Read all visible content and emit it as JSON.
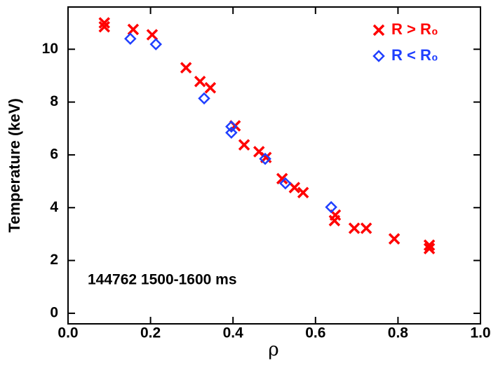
{
  "chart_data": {
    "type": "scatter",
    "xlabel": "ρ",
    "ylabel": "Temperature (keV)",
    "annotation": "144762 1500-1600 ms",
    "xlim": [
      0,
      1
    ],
    "ylim": [
      -0.4,
      11.6
    ],
    "xticks": [
      {
        "value": 0,
        "label": "0.0"
      },
      {
        "value": 0.2,
        "label": "0.2"
      },
      {
        "value": 0.4,
        "label": "0.4"
      },
      {
        "value": 0.6,
        "label": "0.6"
      },
      {
        "value": 0.8,
        "label": "0.8"
      },
      {
        "value": 1,
        "label": "1.0"
      }
    ],
    "yticks": [
      0,
      2,
      4,
      6,
      8,
      10
    ],
    "legend": "upper right",
    "series": [
      {
        "name": "R > R₀",
        "color": "#ff0000",
        "marker": "x",
        "x": [
          0.088,
          0.088,
          0.158,
          0.204,
          0.286,
          0.32,
          0.345,
          0.405,
          0.427,
          0.463,
          0.48,
          0.519,
          0.549,
          0.57,
          0.648,
          0.646,
          0.694,
          0.723,
          0.791,
          0.876,
          0.876
        ],
        "values": [
          11.0,
          10.85,
          10.75,
          10.55,
          9.3,
          8.78,
          8.54,
          7.1,
          6.38,
          6.12,
          5.9,
          5.1,
          4.76,
          4.57,
          3.72,
          3.51,
          3.22,
          3.22,
          2.82,
          2.58,
          2.45
        ]
      },
      {
        "name": "R < R₀",
        "color": "#1f3fff",
        "marker": "diamond",
        "x": [
          0.151,
          0.213,
          0.33,
          0.396,
          0.396,
          0.478,
          0.527,
          0.638
        ],
        "values": [
          10.4,
          10.19,
          8.14,
          7.07,
          6.84,
          5.85,
          4.92,
          4.02
        ]
      }
    ]
  }
}
